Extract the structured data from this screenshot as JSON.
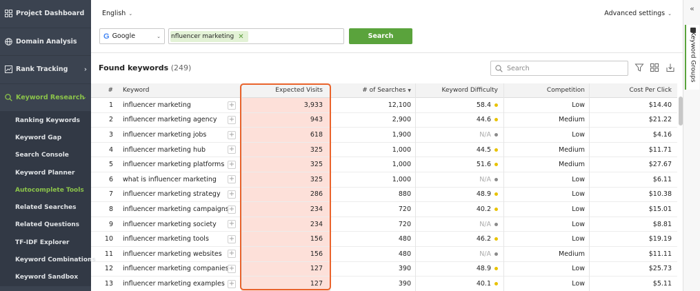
{
  "sidebar": {
    "items": [
      {
        "label": "Project Dashboard",
        "icon": "grid-icon"
      },
      {
        "label": "Domain Analysis",
        "icon": "globe-icon"
      },
      {
        "label": "Rank Tracking",
        "icon": "chart-icon"
      },
      {
        "label": "Keyword Research",
        "icon": "search-icon"
      }
    ],
    "subitems": [
      "Ranking Keywords",
      "Keyword Gap",
      "Search Console",
      "Keyword Planner",
      "Autocomplete Tools",
      "Related Searches",
      "Related Questions",
      "TF-IDF Explorer",
      "Keyword Combinations",
      "Keyword Sandbox"
    ],
    "active_subitem": "Autocomplete Tools"
  },
  "header": {
    "language": "English",
    "advanced_settings": "Advanced settings"
  },
  "search": {
    "engine": "Google",
    "keyword_chip": "nfluencer marketing",
    "button": "Search"
  },
  "results": {
    "title": "Found keywords",
    "count": "(249)",
    "search_placeholder": "Search"
  },
  "table": {
    "headers": {
      "num": "#",
      "keyword": "Keyword",
      "expected_visits": "Expected Visits",
      "searches": "# of Searches",
      "difficulty": "Keyword Difficulty",
      "competition": "Competition",
      "cpc": "Cost Per Click"
    },
    "rows": [
      {
        "n": "1",
        "kw": "influencer marketing",
        "ev": "3,933",
        "s": "12,100",
        "kd": "58.4",
        "c": "Low",
        "cpc": "$14.40"
      },
      {
        "n": "2",
        "kw": "influencer marketing agency",
        "ev": "943",
        "s": "2,900",
        "kd": "44.6",
        "c": "Medium",
        "cpc": "$21.22"
      },
      {
        "n": "3",
        "kw": "influencer marketing jobs",
        "ev": "618",
        "s": "1,900",
        "kd": "N/A",
        "c": "Low",
        "cpc": "$4.16"
      },
      {
        "n": "4",
        "kw": "influencer marketing hub",
        "ev": "325",
        "s": "1,000",
        "kd": "44.5",
        "c": "Medium",
        "cpc": "$11.71"
      },
      {
        "n": "5",
        "kw": "influencer marketing platforms",
        "ev": "325",
        "s": "1,000",
        "kd": "51.6",
        "c": "Medium",
        "cpc": "$27.67"
      },
      {
        "n": "6",
        "kw": "what is influencer marketing",
        "ev": "325",
        "s": "1,000",
        "kd": "N/A",
        "c": "Low",
        "cpc": "$6.11"
      },
      {
        "n": "7",
        "kw": "influencer marketing strategy",
        "ev": "286",
        "s": "880",
        "kd": "48.9",
        "c": "Low",
        "cpc": "$10.38"
      },
      {
        "n": "8",
        "kw": "influencer marketing campaigns",
        "ev": "234",
        "s": "720",
        "kd": "40.2",
        "c": "Low",
        "cpc": "$15.01"
      },
      {
        "n": "9",
        "kw": "influencer marketing society",
        "ev": "234",
        "s": "720",
        "kd": "N/A",
        "c": "Low",
        "cpc": "$8.81"
      },
      {
        "n": "10",
        "kw": "influencer marketing tools",
        "ev": "156",
        "s": "480",
        "kd": "46.2",
        "c": "Low",
        "cpc": "$19.19"
      },
      {
        "n": "11",
        "kw": "influencer marketing websites",
        "ev": "156",
        "s": "480",
        "kd": "N/A",
        "c": "Medium",
        "cpc": "$11.11"
      },
      {
        "n": "12",
        "kw": "influencer marketing companies",
        "ev": "127",
        "s": "390",
        "kd": "48.9",
        "c": "Low",
        "cpc": "$25.73"
      },
      {
        "n": "13",
        "kw": "influencer marketing examples",
        "ev": "127",
        "s": "390",
        "kd": "40.1",
        "c": "Low",
        "cpc": "$5.11"
      }
    ]
  },
  "right_panel": {
    "tab_label": "Keyword Groups",
    "collapse_icon": "double-chevron-left-icon"
  },
  "colors": {
    "sidebar_bg": "#3b4350",
    "accent_green": "#5aa33c",
    "active_nav": "#8bc34a",
    "highlight_frame": "#e9622a",
    "highlight_fill": "#fde0d9",
    "difficulty_dot": "#e8c200",
    "na_dot": "#8a8a8a"
  }
}
